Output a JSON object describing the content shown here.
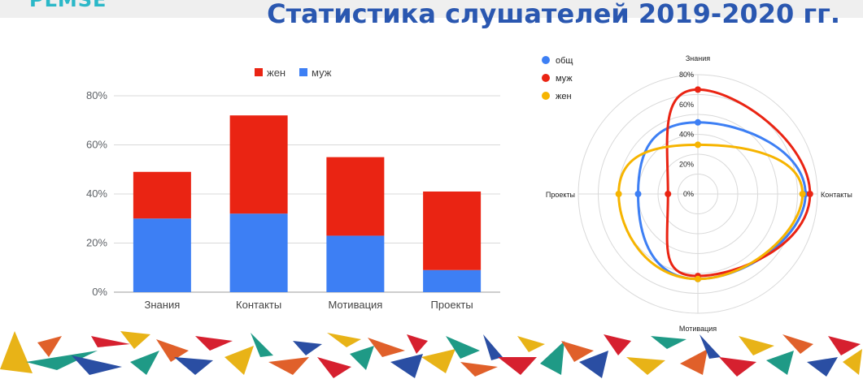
{
  "header": {
    "logo_fragment": "PLMSE",
    "title": "Статистика слушателей 2019-2020 гг."
  },
  "colors": {
    "male": "#3d7ff4",
    "female": "#ea2413",
    "total": "#3d7ff4",
    "yellow": "#f6b400",
    "title": "#2a57b0",
    "grid": "#d9d9d9",
    "axis_text": "#5f6368"
  },
  "chart_data": [
    {
      "type": "bar",
      "stacked": true,
      "categories": [
        "Знания",
        "Контакты",
        "Мотивация",
        "Проекты"
      ],
      "series": [
        {
          "name": "муж",
          "color": "#3d7ff4",
          "values": [
            30,
            32,
            23,
            9
          ]
        },
        {
          "name": "жен",
          "color": "#ea2413",
          "values": [
            19,
            40,
            32,
            32
          ]
        }
      ],
      "legend": [
        "жен",
        "муж"
      ],
      "legend_position": "top",
      "yticks": [
        "0%",
        "20%",
        "40%",
        "60%",
        "80%"
      ],
      "ylim": [
        0,
        80
      ],
      "grid": true
    },
    {
      "type": "radar",
      "axes": [
        "Знания",
        "Контакты",
        "Мотивация",
        "Проекты"
      ],
      "radial_ticks": [
        "0%",
        "20%",
        "40%",
        "60%",
        "80%"
      ],
      "rlim": [
        0,
        80
      ],
      "series": [
        {
          "name": "общ",
          "color": "#3d7ff4",
          "values": [
            48,
            72,
            57,
            40
          ]
        },
        {
          "name": "муж",
          "color": "#ea2413",
          "values": [
            70,
            75,
            55,
            20
          ]
        },
        {
          "name": "жен",
          "color": "#f6b400",
          "values": [
            33,
            70,
            57,
            53
          ]
        }
      ],
      "legend_position": "top-left"
    }
  ]
}
